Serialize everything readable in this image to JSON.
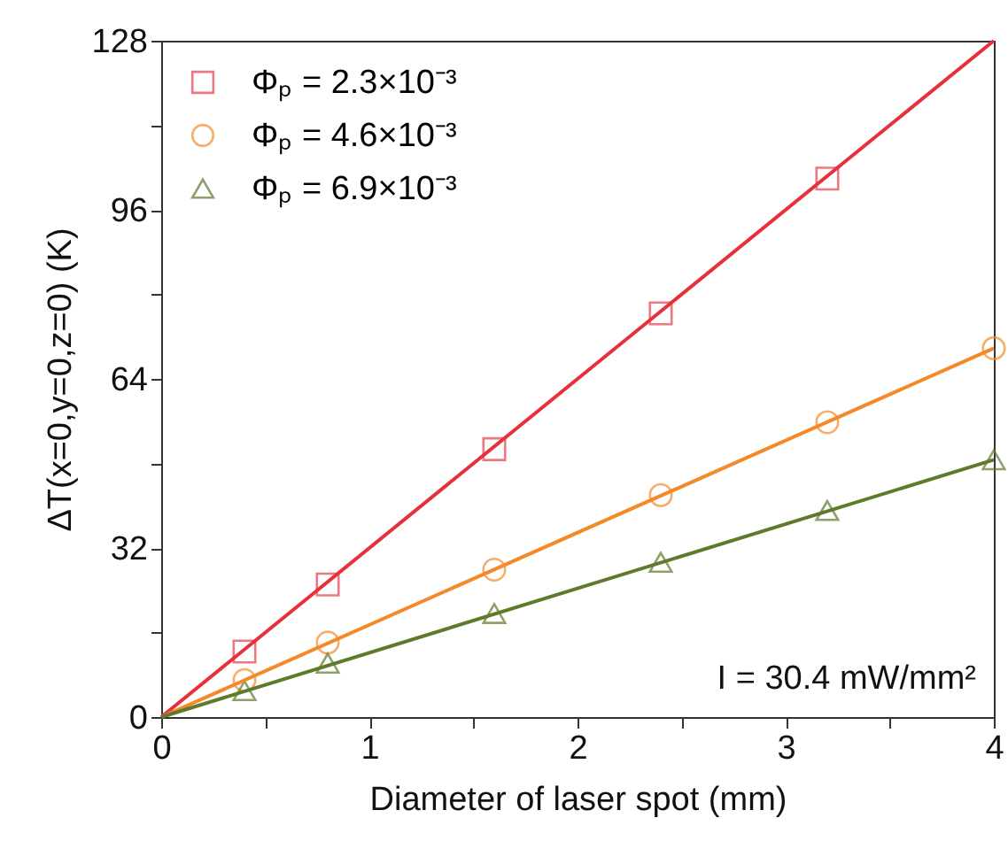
{
  "chart_data": {
    "type": "scatter",
    "xlabel": "Diameter of laser spot (mm)",
    "ylabel": "ΔT(x=0,y=0,z=0) (K)",
    "xlim": [
      0,
      4
    ],
    "xticks": [
      0,
      {
        "value": 0.5,
        "label": null
      },
      1,
      {
        "value": 1.5,
        "label": null
      },
      2,
      {
        "value": 2.5,
        "label": null
      },
      3,
      {
        "value": 3.5,
        "label": null
      },
      4
    ],
    "ylim": [
      0,
      128
    ],
    "yticks": [
      0,
      {
        "value": 16,
        "label": null
      },
      32,
      {
        "value": 48,
        "label": null
      },
      64,
      {
        "value": 80,
        "label": null
      },
      96,
      {
        "value": 112,
        "label": null
      },
      128
    ],
    "grid": false,
    "legend": "top left",
    "annotations": [
      "I = 30.4 mW/mm²"
    ],
    "series": [
      {
        "name": "Φₚ = 2.3×10⁻³",
        "marker": "square",
        "color": "#e8404a",
        "x": [
          0.4,
          0.8,
          1.6,
          2.4,
          3.2
        ],
        "values": [
          12.4,
          25.1,
          50.7,
          76.4,
          101.9
        ]
      },
      {
        "name": "Φₚ = 4.6×10⁻³",
        "marker": "circle",
        "color": "#f5892a",
        "x": [
          0.4,
          0.8,
          1.6,
          2.4,
          3.2,
          4.0
        ],
        "values": [
          7.0,
          14.1,
          27.9,
          42.0,
          55.8,
          69.8
        ]
      },
      {
        "name": "Φₚ = 6.9×10⁻³",
        "marker": "triangle",
        "color": "#5e7a2a",
        "x": [
          0.4,
          0.8,
          1.6,
          2.4,
          3.2,
          4.0
        ],
        "values": [
          5.0,
          10.2,
          19.6,
          29.3,
          39.1,
          48.7
        ]
      },
      {
        "type": "line",
        "color": "#e8303a",
        "x": [
          0,
          4
        ],
        "values": [
          0,
          128
        ]
      },
      {
        "type": "line",
        "color": "#f5892a",
        "x": [
          0,
          4
        ],
        "values": [
          0,
          69.8
        ]
      },
      {
        "type": "line",
        "color": "#5e7a2a",
        "x": [
          0,
          4
        ],
        "values": [
          0,
          48.7
        ]
      }
    ]
  }
}
